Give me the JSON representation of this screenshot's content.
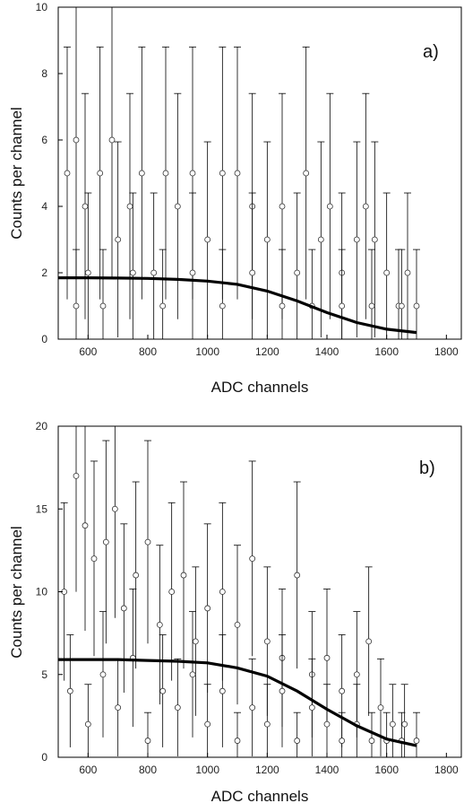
{
  "chart_data": [
    {
      "type": "scatter",
      "panel_label": "a)",
      "xlabel": "ADC channels",
      "ylabel": "Counts per channel",
      "xlim": [
        500,
        1850
      ],
      "ylim": [
        0,
        10
      ],
      "xticks": [
        600,
        800,
        1000,
        1200,
        1400,
        1600,
        1800
      ],
      "yticks": [
        0,
        2,
        4,
        6,
        8,
        10
      ],
      "points": [
        {
          "x": 530,
          "y": 5
        },
        {
          "x": 560,
          "y": 6
        },
        {
          "x": 590,
          "y": 4
        },
        {
          "x": 600,
          "y": 2
        },
        {
          "x": 640,
          "y": 5
        },
        {
          "x": 680,
          "y": 6
        },
        {
          "x": 700,
          "y": 3
        },
        {
          "x": 740,
          "y": 4
        },
        {
          "x": 780,
          "y": 5
        },
        {
          "x": 820,
          "y": 2
        },
        {
          "x": 860,
          "y": 5
        },
        {
          "x": 900,
          "y": 4
        },
        {
          "x": 950,
          "y": 5
        },
        {
          "x": 1000,
          "y": 3
        },
        {
          "x": 1050,
          "y": 5
        },
        {
          "x": 1100,
          "y": 5
        },
        {
          "x": 1150,
          "y": 4
        },
        {
          "x": 1200,
          "y": 3
        },
        {
          "x": 1250,
          "y": 4
        },
        {
          "x": 1300,
          "y": 2
        },
        {
          "x": 1330,
          "y": 5
        },
        {
          "x": 1380,
          "y": 3
        },
        {
          "x": 1410,
          "y": 4
        },
        {
          "x": 1450,
          "y": 2
        },
        {
          "x": 1500,
          "y": 3
        },
        {
          "x": 1530,
          "y": 4
        },
        {
          "x": 1560,
          "y": 3
        },
        {
          "x": 1600,
          "y": 2
        },
        {
          "x": 1640,
          "y": 1
        },
        {
          "x": 1670,
          "y": 2
        },
        {
          "x": 1700,
          "y": 1
        },
        {
          "x": 560,
          "y": 1
        },
        {
          "x": 650,
          "y": 1
        },
        {
          "x": 750,
          "y": 2
        },
        {
          "x": 850,
          "y": 1
        },
        {
          "x": 950,
          "y": 2
        },
        {
          "x": 1050,
          "y": 1
        },
        {
          "x": 1150,
          "y": 2
        },
        {
          "x": 1250,
          "y": 1
        },
        {
          "x": 1350,
          "y": 1
        },
        {
          "x": 1450,
          "y": 1
        },
        {
          "x": 1550,
          "y": 1
        },
        {
          "x": 1650,
          "y": 1
        }
      ],
      "fit": {
        "x": [
          500,
          600,
          700,
          800,
          900,
          1000,
          1100,
          1200,
          1300,
          1400,
          1500,
          1600,
          1700
        ],
        "y": [
          1.85,
          1.85,
          1.84,
          1.83,
          1.8,
          1.75,
          1.65,
          1.45,
          1.15,
          0.8,
          0.5,
          0.3,
          0.2
        ]
      }
    },
    {
      "type": "scatter",
      "panel_label": "b)",
      "xlabel": "ADC channels",
      "ylabel": "Counts per channel",
      "xlim": [
        500,
        1850
      ],
      "ylim": [
        0,
        20
      ],
      "xticks": [
        600,
        800,
        1000,
        1200,
        1400,
        1600,
        1800
      ],
      "yticks": [
        0,
        5,
        10,
        15,
        20
      ],
      "points": [
        {
          "x": 520,
          "y": 10
        },
        {
          "x": 560,
          "y": 17
        },
        {
          "x": 590,
          "y": 14
        },
        {
          "x": 620,
          "y": 12
        },
        {
          "x": 660,
          "y": 13
        },
        {
          "x": 690,
          "y": 15
        },
        {
          "x": 720,
          "y": 9
        },
        {
          "x": 760,
          "y": 11
        },
        {
          "x": 800,
          "y": 13
        },
        {
          "x": 840,
          "y": 8
        },
        {
          "x": 880,
          "y": 10
        },
        {
          "x": 920,
          "y": 11
        },
        {
          "x": 960,
          "y": 7
        },
        {
          "x": 1000,
          "y": 9
        },
        {
          "x": 1050,
          "y": 10
        },
        {
          "x": 1100,
          "y": 8
        },
        {
          "x": 1150,
          "y": 12
        },
        {
          "x": 1200,
          "y": 7
        },
        {
          "x": 1250,
          "y": 6
        },
        {
          "x": 1300,
          "y": 11
        },
        {
          "x": 1350,
          "y": 5
        },
        {
          "x": 1400,
          "y": 6
        },
        {
          "x": 1450,
          "y": 4
        },
        {
          "x": 1500,
          "y": 5
        },
        {
          "x": 1540,
          "y": 7
        },
        {
          "x": 1580,
          "y": 3
        },
        {
          "x": 1620,
          "y": 2
        },
        {
          "x": 1660,
          "y": 2
        },
        {
          "x": 1700,
          "y": 1
        },
        {
          "x": 540,
          "y": 4
        },
        {
          "x": 600,
          "y": 2
        },
        {
          "x": 650,
          "y": 5
        },
        {
          "x": 700,
          "y": 3
        },
        {
          "x": 750,
          "y": 6
        },
        {
          "x": 800,
          "y": 1
        },
        {
          "x": 850,
          "y": 4
        },
        {
          "x": 900,
          "y": 3
        },
        {
          "x": 950,
          "y": 5
        },
        {
          "x": 1000,
          "y": 2
        },
        {
          "x": 1050,
          "y": 4
        },
        {
          "x": 1100,
          "y": 1
        },
        {
          "x": 1150,
          "y": 3
        },
        {
          "x": 1200,
          "y": 2
        },
        {
          "x": 1250,
          "y": 4
        },
        {
          "x": 1300,
          "y": 1
        },
        {
          "x": 1350,
          "y": 3
        },
        {
          "x": 1400,
          "y": 2
        },
        {
          "x": 1450,
          "y": 1
        },
        {
          "x": 1500,
          "y": 2
        },
        {
          "x": 1550,
          "y": 1
        },
        {
          "x": 1600,
          "y": 1
        },
        {
          "x": 1650,
          "y": 1
        }
      ],
      "fit": {
        "x": [
          500,
          600,
          700,
          800,
          900,
          1000,
          1100,
          1200,
          1300,
          1400,
          1500,
          1600,
          1700
        ],
        "y": [
          5.9,
          5.9,
          5.9,
          5.85,
          5.8,
          5.7,
          5.4,
          4.9,
          4.0,
          2.9,
          1.9,
          1.1,
          0.7
        ]
      }
    }
  ]
}
